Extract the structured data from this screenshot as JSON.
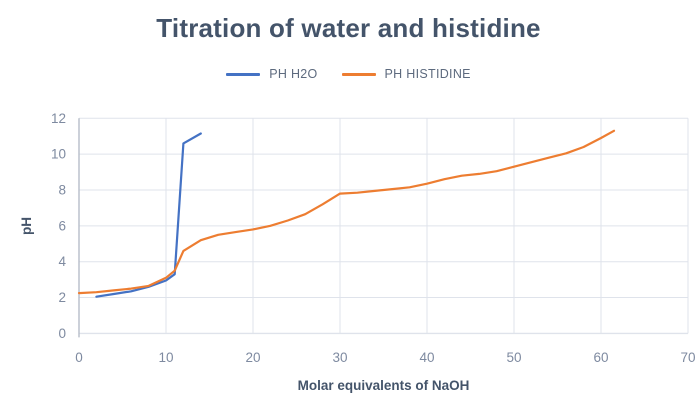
{
  "chart_data": {
    "type": "line",
    "title": "Titration of water and histidine",
    "xlabel": "Molar equivalents of NaOH",
    "ylabel": "pH",
    "xlim": [
      0,
      70
    ],
    "ylim": [
      0,
      12
    ],
    "x_ticks": [
      0,
      10,
      20,
      30,
      40,
      50,
      60,
      70
    ],
    "y_ticks": [
      0,
      2,
      4,
      6,
      8,
      10,
      12
    ],
    "grid": true,
    "legend_position": "top",
    "series": [
      {
        "name": "PH H2O",
        "color": "#4472C4",
        "points": [
          [
            2,
            2.05
          ],
          [
            4,
            2.2
          ],
          [
            6,
            2.35
          ],
          [
            8,
            2.6
          ],
          [
            10,
            2.95
          ],
          [
            11,
            3.3
          ],
          [
            12,
            10.6
          ],
          [
            14,
            11.15
          ]
        ]
      },
      {
        "name": "PH HISTIDINE",
        "color": "#ED7D31",
        "points": [
          [
            0,
            2.25
          ],
          [
            2,
            2.3
          ],
          [
            4,
            2.4
          ],
          [
            6,
            2.5
          ],
          [
            8,
            2.65
          ],
          [
            10,
            3.1
          ],
          [
            11,
            3.5
          ],
          [
            12,
            4.6
          ],
          [
            14,
            5.2
          ],
          [
            16,
            5.5
          ],
          [
            18,
            5.65
          ],
          [
            20,
            5.8
          ],
          [
            22,
            6.0
          ],
          [
            24,
            6.3
          ],
          [
            26,
            6.65
          ],
          [
            28,
            7.2
          ],
          [
            30,
            7.8
          ],
          [
            32,
            7.85
          ],
          [
            34,
            7.95
          ],
          [
            36,
            8.05
          ],
          [
            38,
            8.15
          ],
          [
            40,
            8.35
          ],
          [
            42,
            8.6
          ],
          [
            44,
            8.8
          ],
          [
            46,
            8.9
          ],
          [
            48,
            9.05
          ],
          [
            50,
            9.3
          ],
          [
            52,
            9.55
          ],
          [
            54,
            9.8
          ],
          [
            56,
            10.05
          ],
          [
            58,
            10.4
          ],
          [
            60,
            10.9
          ],
          [
            61.5,
            11.3
          ]
        ]
      }
    ]
  },
  "colors": {
    "title": "#44546A",
    "axis_title": "#44546A",
    "tick_label": "#7E8AA0",
    "gridline": "#DFE3EB",
    "axis_line": "#B6BDC9",
    "background": "#FFFFFF"
  }
}
